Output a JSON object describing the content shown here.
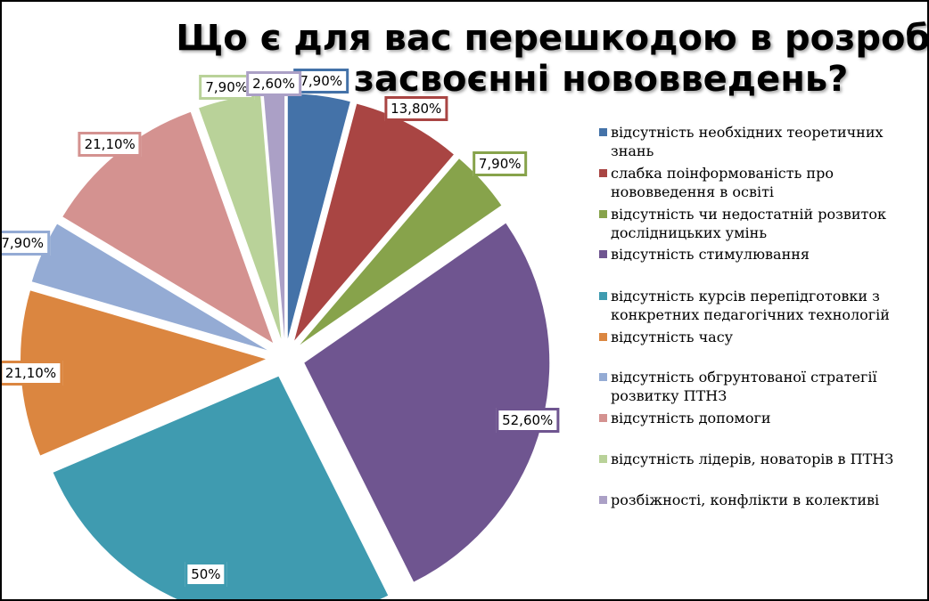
{
  "chart_data": {
    "type": "pie",
    "title": "Що є для вас перешкодою в розробці та засвоєнні нововведень?",
    "exploded": true,
    "legend_position": "right",
    "categories": [
      "відсутність необхідних теоретичних знань",
      "слабка поінформованість про нововведення в освіті",
      "відсутність чи недостатній розвиток дослідницьких умінь",
      "відсутність стимулювання",
      "відсутність курсів перепідготовки з конкретних педагогічних технологій",
      "відсутність часу",
      "відсутність обгрунтованої стратегії розвитку ПТНЗ",
      "відсутність допомоги",
      "відсутність лідерів, новаторів в ПТНЗ",
      "розбіжності, конфлікти в колективі"
    ],
    "values": [
      7.9,
      13.8,
      7.9,
      52.6,
      50,
      21.1,
      7.9,
      21.1,
      7.9,
      2.6
    ],
    "data_labels": [
      "7,90%",
      "13,80%",
      "7,90%",
      "52,60%",
      "50%",
      "21,10%",
      "7,90%",
      "21,10%",
      "7,90%",
      "2,60%"
    ],
    "colors": [
      "#4472a8",
      "#a94543",
      "#87a34b",
      "#6f5590",
      "#3f9bb0",
      "#db8640",
      "#94abd4",
      "#d49290",
      "#b9d299",
      "#aba0c6"
    ]
  }
}
